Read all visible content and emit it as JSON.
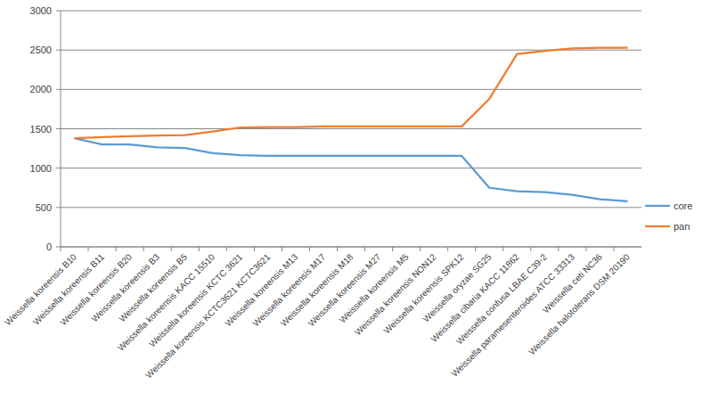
{
  "chart_data": {
    "type": "line",
    "categories": [
      "Weissella koreensis B10",
      "Weissella koreensis B11",
      "Weissella koreensis B20",
      "Weissella koreensis B3",
      "Weissella koreensis B5",
      "Weissella koreensis KACC 15510",
      "Weissella koreensis KCTC 3621",
      "Weissella koreensis KCTC3621 KCTC3621",
      "Weissella koreensis M13",
      "Weissella koreensis M17",
      "Weissella koreensis M18",
      "Weissella koreensis M27",
      "Weissella koreensis M5",
      "Weissella koreensis NON12",
      "Weissella koreensis SPK12",
      "Weissella oryzae SG25",
      "Weissella cibaria KACC 11862",
      "Weissella confusa LBAE C39-2",
      "Weissella paramesenteroides ATCC 33313",
      "Weissella ceti NC36",
      "Weissella halotolerans DSM 20190"
    ],
    "series": [
      {
        "name": "core",
        "color": "#5b9bd5",
        "values": [
          1380,
          1300,
          1300,
          1265,
          1255,
          1190,
          1165,
          1155,
          1155,
          1155,
          1155,
          1155,
          1155,
          1155,
          1155,
          750,
          705,
          695,
          660,
          605,
          580
        ]
      },
      {
        "name": "pan",
        "color": "#ed7d31",
        "values": [
          1380,
          1395,
          1405,
          1415,
          1420,
          1465,
          1515,
          1520,
          1520,
          1530,
          1530,
          1530,
          1530,
          1530,
          1530,
          1880,
          2450,
          2490,
          2520,
          2530,
          2530
        ]
      }
    ],
    "ylim": [
      0,
      3000
    ],
    "yticks": [
      0,
      500,
      1000,
      1500,
      2000,
      2500,
      3000
    ],
    "grid": true,
    "legend": "right",
    "marker": "none"
  }
}
